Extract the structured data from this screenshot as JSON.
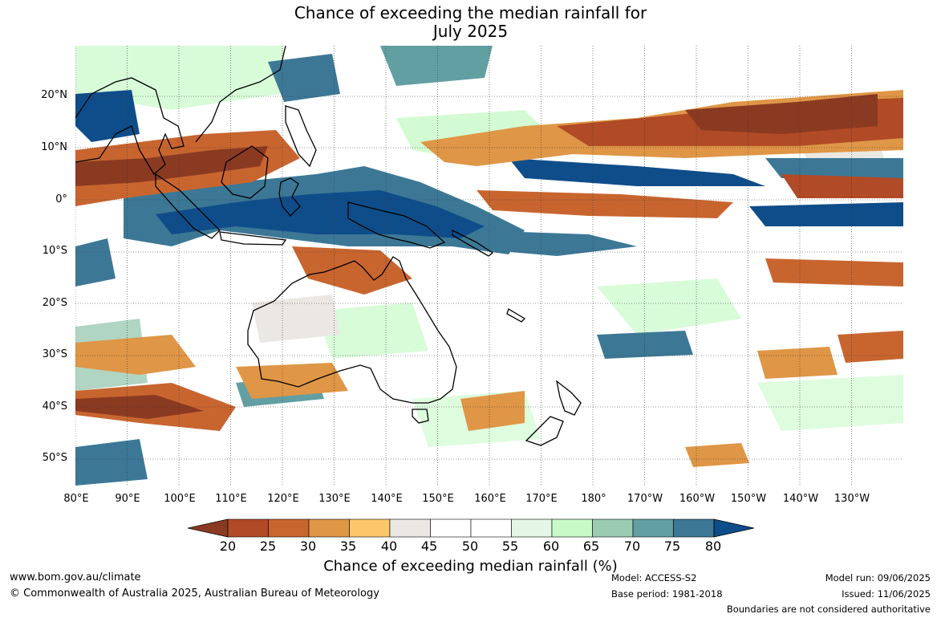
{
  "title_line1": "Chance of exceeding the median rainfall for",
  "title_line2": "July 2025",
  "lat_labels": [
    "20°N",
    "10°N",
    "0°",
    "10°S",
    "20°S",
    "30°S",
    "40°S",
    "50°S"
  ],
  "lon_labels": [
    "80°E",
    "90°E",
    "100°E",
    "110°E",
    "120°E",
    "130°E",
    "140°E",
    "150°E",
    "160°E",
    "170°E",
    "180°",
    "170°W",
    "160°W",
    "150°W",
    "140°W",
    "130°W"
  ],
  "colorbar": {
    "ticks": [
      "20",
      "25",
      "30",
      "35",
      "40",
      "45",
      "50",
      "55",
      "60",
      "65",
      "70",
      "75",
      "80"
    ],
    "colors": [
      "#8b3a22",
      "#b14a26",
      "#c8652f",
      "#df9646",
      "#fdc66b",
      "#ebe8e3",
      "#ffffff",
      "#ffffff",
      "#e6f6e6",
      "#c8fac8",
      "#9ccbb3",
      "#629fa2",
      "#3c7896",
      "#0f4d8a"
    ],
    "title": "Chance of exceeding median rainfall (%)"
  },
  "footer": {
    "url": "www.bom.gov.au/climate",
    "copyright": "© Commonwealth of Australia 2025, Australian Bureau of Meteorology",
    "model": "Model: ACCESS-S2",
    "base_period": "Base period: 1981-2018",
    "model_run": "Model run: 09/06/2025",
    "issued": "Issued: 11/06/2025",
    "disclaimer": "Boundaries are not considered authoritative"
  }
}
